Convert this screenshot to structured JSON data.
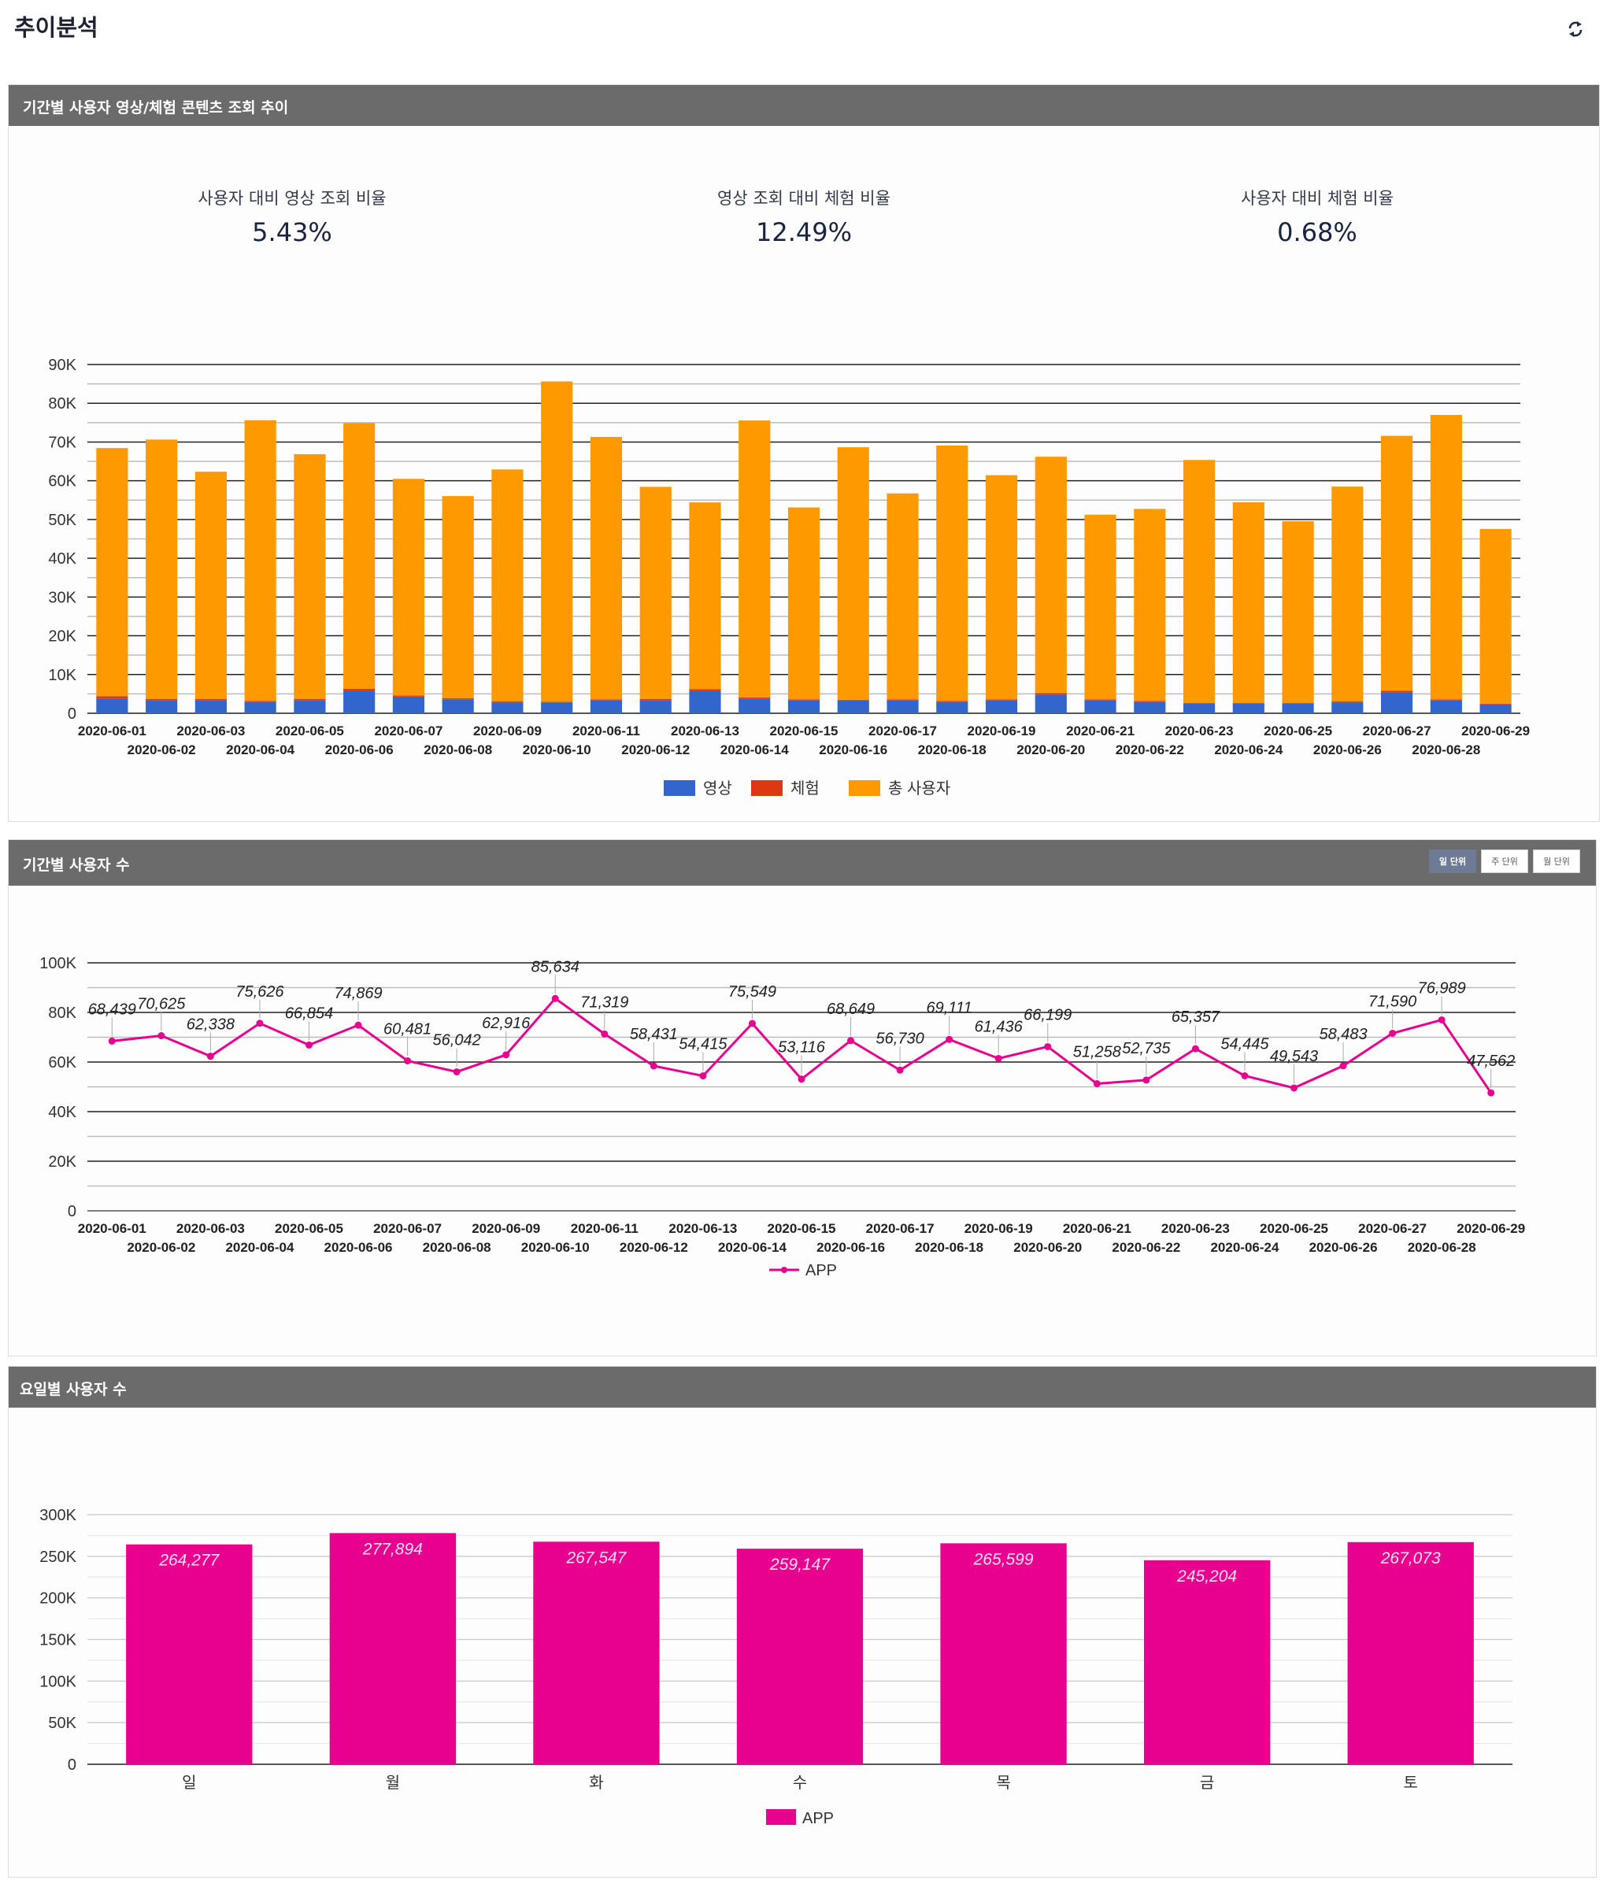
{
  "page": {
    "title": "추이분석",
    "refresh_icon": "refresh-icon"
  },
  "panels": [
    {
      "title": "기간별 사용자 영상/체험 콘텐츠 조회 추이",
      "stats": [
        {
          "label": "사용자 대비 영상 조회 비율",
          "value": "5.43%"
        },
        {
          "label": "영상 조회 대비 체험 비율",
          "value": "12.49%"
        },
        {
          "label": "사용자 대비 체험 비율",
          "value": "0.68%"
        }
      ]
    },
    {
      "title": "기간별 사용자 수",
      "unit_buttons": [
        {
          "label": "일 단위",
          "active": true
        },
        {
          "label": "주 단위",
          "active": false
        },
        {
          "label": "월 단위",
          "active": false
        }
      ]
    },
    {
      "title": "요일별 사용자 수"
    }
  ],
  "colors": {
    "video": "#3366cc",
    "experience": "#dc3912",
    "total": "#ff9900",
    "app": "#e8008f",
    "header": "#6b6b6b"
  },
  "chart_data": [
    {
      "type": "bar",
      "stacked": true,
      "title": "",
      "xlabel": "",
      "ylabel": "",
      "ylim": [
        0,
        90000
      ],
      "yticks": [
        "0",
        "10K",
        "20K",
        "30K",
        "40K",
        "50K",
        "60K",
        "70K",
        "80K",
        "90K"
      ],
      "grid": true,
      "legend": "bottom",
      "categories": [
        "2020-06-01",
        "2020-06-02",
        "2020-06-03",
        "2020-06-04",
        "2020-06-05",
        "2020-06-06",
        "2020-06-07",
        "2020-06-08",
        "2020-06-09",
        "2020-06-10",
        "2020-06-11",
        "2020-06-12",
        "2020-06-13",
        "2020-06-14",
        "2020-06-15",
        "2020-06-16",
        "2020-06-17",
        "2020-06-18",
        "2020-06-19",
        "2020-06-20",
        "2020-06-21",
        "2020-06-22",
        "2020-06-23",
        "2020-06-24",
        "2020-06-25",
        "2020-06-26",
        "2020-06-27",
        "2020-06-28",
        "2020-06-29"
      ],
      "series": [
        {
          "name": "영상",
          "values": [
            3800,
            3400,
            3400,
            3000,
            3400,
            5800,
            4300,
            3600,
            2800,
            2800,
            3300,
            3400,
            5700,
            3800,
            3300,
            3300,
            3300,
            3000,
            3300,
            4800,
            3300,
            3000,
            2500,
            2500,
            2500,
            2800,
            5300,
            3300,
            2300
          ]
        },
        {
          "name": "체험",
          "values": [
            600,
            300,
            300,
            200,
            300,
            500,
            300,
            300,
            300,
            200,
            300,
            300,
            500,
            300,
            300,
            200,
            300,
            200,
            300,
            400,
            300,
            200,
            200,
            200,
            200,
            300,
            500,
            300,
            200
          ]
        },
        {
          "name": "총 사용자",
          "values": [
            64039,
            66925,
            58638,
            72426,
            63154,
            68569,
            55881,
            52142,
            59816,
            82634,
            67719,
            54731,
            48215,
            71449,
            49516,
            65149,
            53130,
            65911,
            57836,
            60999,
            47658,
            49535,
            62657,
            51745,
            46843,
            55383,
            65790,
            73389,
            45062
          ]
        }
      ]
    },
    {
      "type": "line",
      "title": "",
      "ylim": [
        0,
        100000
      ],
      "yticks": [
        "0",
        "20K",
        "40K",
        "60K",
        "80K",
        "100K"
      ],
      "grid": true,
      "legend": "bottom",
      "x": [
        "2020-06-01",
        "2020-06-02",
        "2020-06-03",
        "2020-06-04",
        "2020-06-05",
        "2020-06-06",
        "2020-06-07",
        "2020-06-08",
        "2020-06-09",
        "2020-06-10",
        "2020-06-11",
        "2020-06-12",
        "2020-06-13",
        "2020-06-14",
        "2020-06-15",
        "2020-06-16",
        "2020-06-17",
        "2020-06-18",
        "2020-06-19",
        "2020-06-20",
        "2020-06-21",
        "2020-06-22",
        "2020-06-23",
        "2020-06-24",
        "2020-06-25",
        "2020-06-26",
        "2020-06-27",
        "2020-06-28",
        "2020-06-29"
      ],
      "series": [
        {
          "name": "APP",
          "values": [
            68439,
            70625,
            62338,
            75626,
            66854,
            74869,
            60481,
            56042,
            62916,
            85634,
            71319,
            58431,
            54415,
            75549,
            53116,
            68649,
            56730,
            69111,
            61436,
            66199,
            51258,
            52735,
            65357,
            54445,
            49543,
            58483,
            71590,
            76989,
            47562
          ],
          "labels": [
            "68,439",
            "70,625",
            "62,338",
            "75,626",
            "66,854",
            "74,869",
            "60,481",
            "56,042",
            "62,916",
            "85,634",
            "71,319",
            "58,431",
            "54,415",
            "75,549",
            "53,116",
            "68,649",
            "56,730",
            "69,111",
            "61,436",
            "66,199",
            "51,258",
            "52,735",
            "65,357",
            "54,445",
            "49,543",
            "58,483",
            "71,590",
            "76,989",
            "47,562"
          ]
        }
      ]
    },
    {
      "type": "bar",
      "title": "",
      "ylim": [
        0,
        300000
      ],
      "yticks": [
        "0",
        "50K",
        "100K",
        "150K",
        "200K",
        "250K",
        "300K"
      ],
      "grid": true,
      "legend": "bottom",
      "categories": [
        "일",
        "월",
        "화",
        "수",
        "목",
        "금",
        "토"
      ],
      "series": [
        {
          "name": "APP",
          "values": [
            264277,
            277894,
            267547,
            259147,
            265599,
            245204,
            267073
          ],
          "labels": [
            "264,277",
            "277,894",
            "267,547",
            "259,147",
            "265,599",
            "245,204",
            "267,073"
          ]
        }
      ]
    }
  ]
}
